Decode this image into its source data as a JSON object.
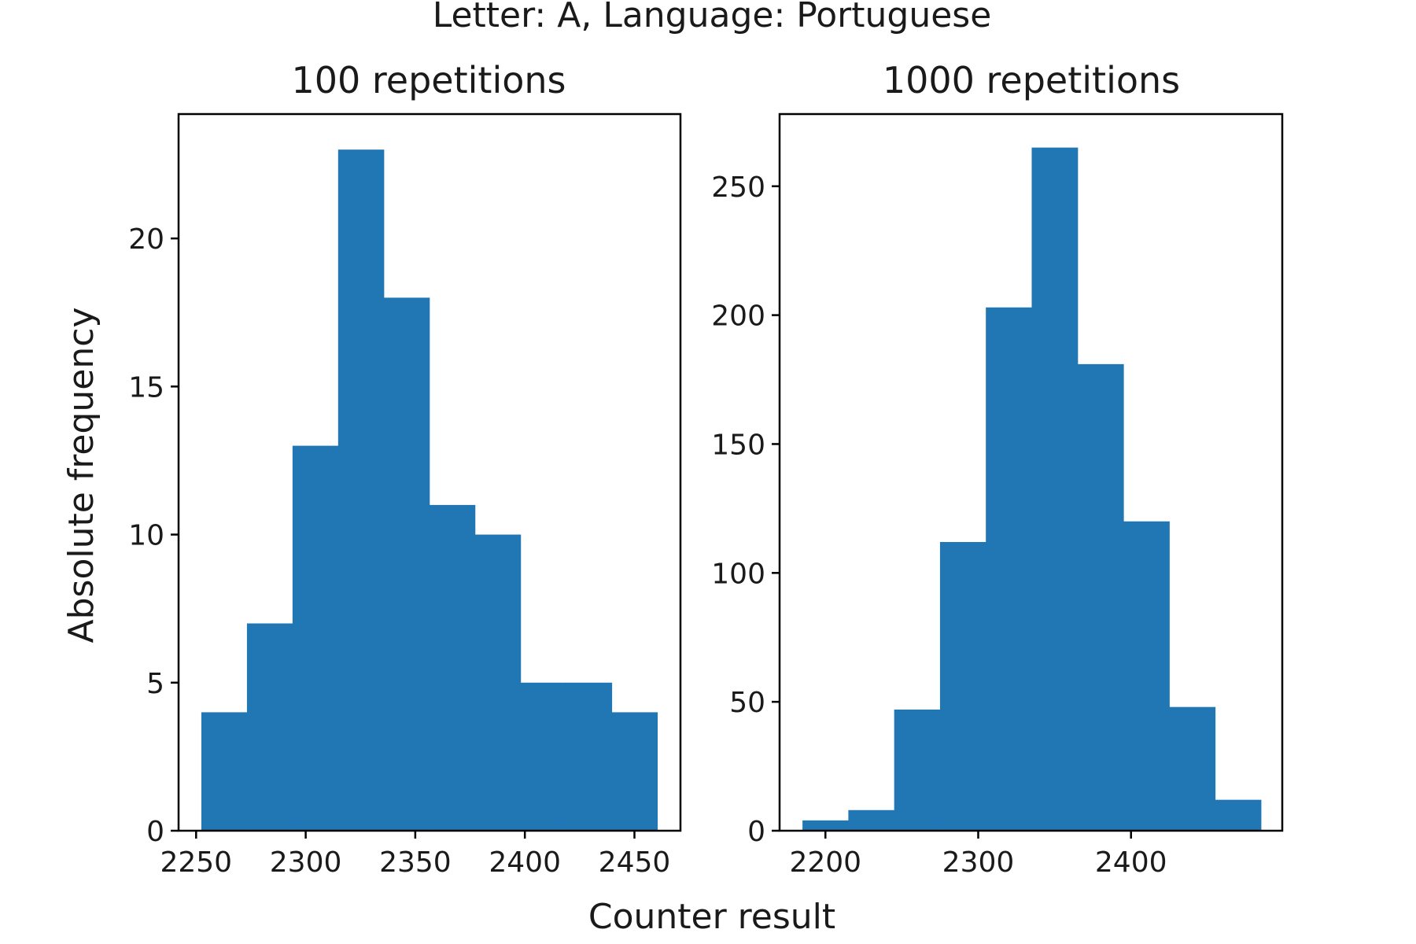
{
  "figure": {
    "suptitle": "Letter: A, Language: Portuguese",
    "xlabel": "Counter result",
    "ylabel": "Absolute frequency",
    "bar_color": "#2077b4"
  },
  "chart_data": [
    {
      "type": "bar",
      "title": "100 repetitions",
      "xlim": [
        2242,
        2471
      ],
      "ylim": [
        0,
        24.2
      ],
      "xticks": [
        2250,
        2300,
        2350,
        2400,
        2450
      ],
      "xtick_labels": [
        "2250",
        "2300",
        "2350",
        "2400",
        "2450"
      ],
      "yticks": [
        0,
        5,
        10,
        15,
        20
      ],
      "ytick_labels": [
        "0",
        "5",
        "10",
        "15",
        "20"
      ],
      "bins": [
        {
          "x0": 2252.4,
          "x1": 2273.2,
          "value": 4
        },
        {
          "x0": 2273.2,
          "x1": 2294.0,
          "value": 7
        },
        {
          "x0": 2294.0,
          "x1": 2314.8,
          "value": 13
        },
        {
          "x0": 2314.8,
          "x1": 2335.6,
          "value": 23
        },
        {
          "x0": 2335.6,
          "x1": 2356.4,
          "value": 18
        },
        {
          "x0": 2356.4,
          "x1": 2377.2,
          "value": 11
        },
        {
          "x0": 2377.2,
          "x1": 2398.0,
          "value": 10
        },
        {
          "x0": 2398.0,
          "x1": 2418.8,
          "value": 5
        },
        {
          "x0": 2418.8,
          "x1": 2439.6,
          "value": 5
        },
        {
          "x0": 2439.6,
          "x1": 2460.4,
          "value": 4
        }
      ]
    },
    {
      "type": "bar",
      "title": "1000 repetitions",
      "xlim": [
        2170,
        2499
      ],
      "ylim": [
        0,
        278
      ],
      "xticks": [
        2200,
        2300,
        2400
      ],
      "xtick_labels": [
        "2200",
        "2300",
        "2400"
      ],
      "yticks": [
        0,
        50,
        100,
        150,
        200,
        250
      ],
      "ytick_labels": [
        "0",
        "50",
        "100",
        "150",
        "200",
        "250"
      ],
      "bins": [
        {
          "x0": 2185.0,
          "x1": 2215.0,
          "value": 4
        },
        {
          "x0": 2215.0,
          "x1": 2245.0,
          "value": 8
        },
        {
          "x0": 2245.0,
          "x1": 2275.0,
          "value": 47
        },
        {
          "x0": 2275.0,
          "x1": 2305.0,
          "value": 112
        },
        {
          "x0": 2305.0,
          "x1": 2335.0,
          "value": 203
        },
        {
          "x0": 2335.0,
          "x1": 2365.0,
          "value": 265
        },
        {
          "x0": 2365.0,
          "x1": 2395.0,
          "value": 181
        },
        {
          "x0": 2395.0,
          "x1": 2425.0,
          "value": 120
        },
        {
          "x0": 2425.0,
          "x1": 2455.0,
          "value": 48
        },
        {
          "x0": 2455.0,
          "x1": 2485.0,
          "value": 12
        }
      ]
    }
  ]
}
